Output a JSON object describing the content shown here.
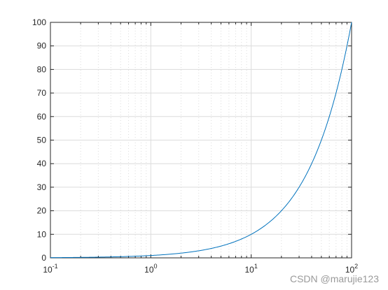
{
  "chart_data": {
    "type": "line",
    "x_scale": "log",
    "xlim": [
      0.1,
      100
    ],
    "ylim": [
      0,
      100
    ],
    "grid": true,
    "minor_grid_x": true,
    "x_ticks": [
      {
        "base": "10",
        "exp": "-1"
      },
      {
        "base": "10",
        "exp": "0"
      },
      {
        "base": "10",
        "exp": "1"
      },
      {
        "base": "10",
        "exp": "2"
      }
    ],
    "y_ticks": [
      "0",
      "10",
      "20",
      "30",
      "40",
      "50",
      "60",
      "70",
      "80",
      "90",
      "100"
    ],
    "series": [
      {
        "color": "#0072BD",
        "function": "y = x",
        "x": [
          0.1,
          0.2,
          0.5,
          1,
          2,
          5,
          10,
          20,
          30,
          40,
          50,
          60,
          70,
          80,
          90,
          100
        ],
        "y": [
          0.1,
          0.2,
          0.5,
          1,
          2,
          5,
          10,
          20,
          30,
          40,
          50,
          60,
          70,
          80,
          90,
          100
        ]
      }
    ]
  },
  "watermark": "CSDN @marujie123",
  "colors": {
    "axis": "#262626",
    "grid": "#dcdcdc",
    "line": "#0072BD"
  }
}
